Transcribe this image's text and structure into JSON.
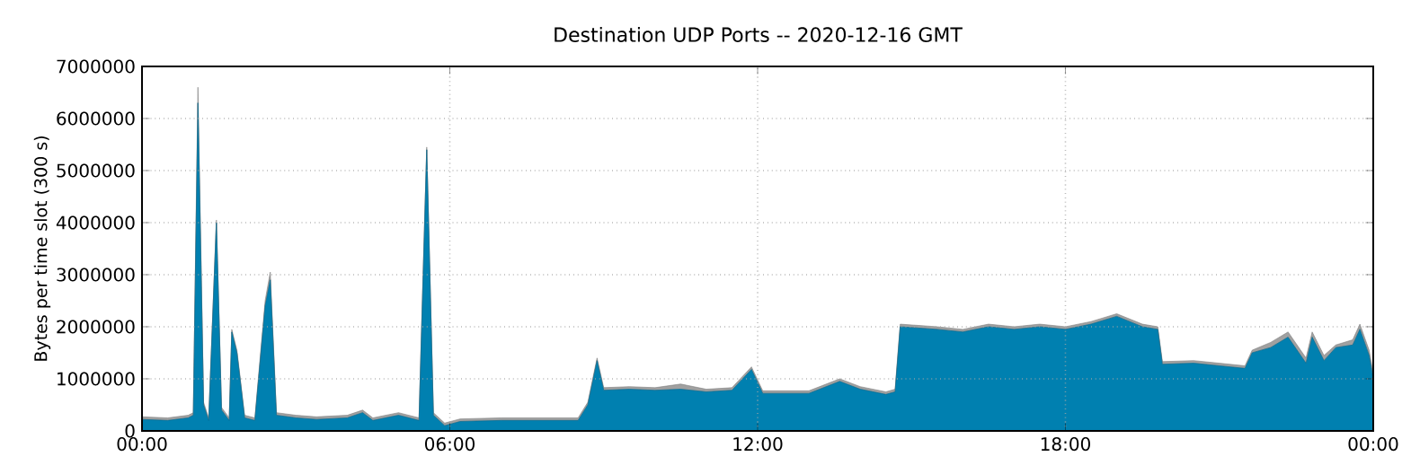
{
  "chart_data": {
    "type": "area",
    "stacked": true,
    "title": "Destination UDP Ports -- 2020-12-16 GMT",
    "ylabel": "Bytes per time slot (300 s)",
    "x": [
      0,
      0.5,
      0.9,
      1.0,
      1.09,
      1.2,
      1.3,
      1.45,
      1.55,
      1.7,
      1.75,
      1.85,
      2.0,
      2.2,
      2.4,
      2.5,
      2.62,
      3.0,
      3.4,
      4.0,
      4.3,
      4.5,
      5.0,
      5.4,
      5.55,
      5.68,
      5.9,
      6.2,
      7.0,
      8.0,
      8.5,
      8.69,
      8.87,
      9.0,
      9.5,
      10.0,
      10.5,
      11.0,
      11.5,
      11.88,
      12.1,
      13.0,
      13.6,
      14.0,
      14.5,
      14.68,
      14.78,
      15.5,
      16.0,
      16.5,
      17.0,
      17.5,
      18.0,
      18.5,
      19.0,
      19.5,
      19.8,
      19.89,
      20.5,
      21.0,
      21.5,
      21.64,
      22.0,
      22.34,
      22.69,
      22.81,
      23.04,
      23.27,
      23.6,
      23.74,
      23.92,
      24
    ],
    "series": [
      {
        "color": "#0080b0",
        "values": [
          220000.0,
          200000.0,
          250000.0,
          300000.0,
          6300000.0,
          500000.0,
          200000.0,
          4000000.0,
          400000.0,
          200000.0,
          1900000.0,
          1500000.0,
          250000.0,
          200000.0,
          2400000.0,
          2900000.0,
          300000.0,
          250000.0,
          220000.0,
          250000.0,
          350000.0,
          200000.0,
          300000.0,
          200000.0,
          5400000.0,
          300000.0,
          100000.0,
          180000.0,
          200000.0,
          200000.0,
          200000.0,
          500000.0,
          1350000.0,
          780000.0,
          800000.0,
          780000.0,
          800000.0,
          750000.0,
          780000.0,
          1180000.0,
          720000.0,
          720000.0,
          950000.0,
          800000.0,
          700000.0,
          750000.0,
          2000000.0,
          1950000.0,
          1900000.0,
          2000000.0,
          1950000.0,
          2000000.0,
          1950000.0,
          2050000.0,
          2200000.0,
          2000000.0,
          1950000.0,
          1280000.0,
          1300000.0,
          1250000.0,
          1200000.0,
          1500000.0,
          1600000.0,
          1800000.0,
          1300000.0,
          1800000.0,
          1350000.0,
          1600000.0,
          1650000.0,
          1950000.0,
          1450000.0,
          1000000.0
        ]
      },
      {
        "color": "#a0a0a0",
        "values": [
          50000.0,
          50000.0,
          50000.0,
          50000.0,
          300000.0,
          50000.0,
          50000.0,
          50000.0,
          50000.0,
          50000.0,
          50000.0,
          50000.0,
          50000.0,
          50000.0,
          100000.0,
          150000.0,
          50000.0,
          50000.0,
          50000.0,
          50000.0,
          50000.0,
          50000.0,
          50000.0,
          50000.0,
          50000.0,
          50000.0,
          50000.0,
          50000.0,
          50000.0,
          50000.0,
          50000.0,
          50000.0,
          50000.0,
          50000.0,
          50000.0,
          50000.0,
          100000.0,
          50000.0,
          50000.0,
          50000.0,
          50000.0,
          50000.0,
          50000.0,
          50000.0,
          50000.0,
          50000.0,
          50000.0,
          50000.0,
          50000.0,
          50000.0,
          50000.0,
          50000.0,
          50000.0,
          50000.0,
          50000.0,
          50000.0,
          50000.0,
          50000.0,
          50000.0,
          50000.0,
          50000.0,
          50000.0,
          100000.0,
          100000.0,
          100000.0,
          100000.0,
          100000.0,
          50000.0,
          100000.0,
          100000.0,
          100000.0,
          100000.0
        ]
      }
    ],
    "xlim": [
      0,
      24
    ],
    "xticks": [
      {
        "value": 0,
        "label": "00:00"
      },
      {
        "value": 6,
        "label": "06:00"
      },
      {
        "value": 12,
        "label": "12:00"
      },
      {
        "value": 18,
        "label": "18:00"
      },
      {
        "value": 24,
        "label": "00:00"
      }
    ],
    "ylim": [
      0,
      7000000
    ],
    "yticks": [
      0,
      1000000,
      2000000,
      3000000,
      4000000,
      5000000,
      6000000,
      7000000
    ],
    "grid": true
  }
}
